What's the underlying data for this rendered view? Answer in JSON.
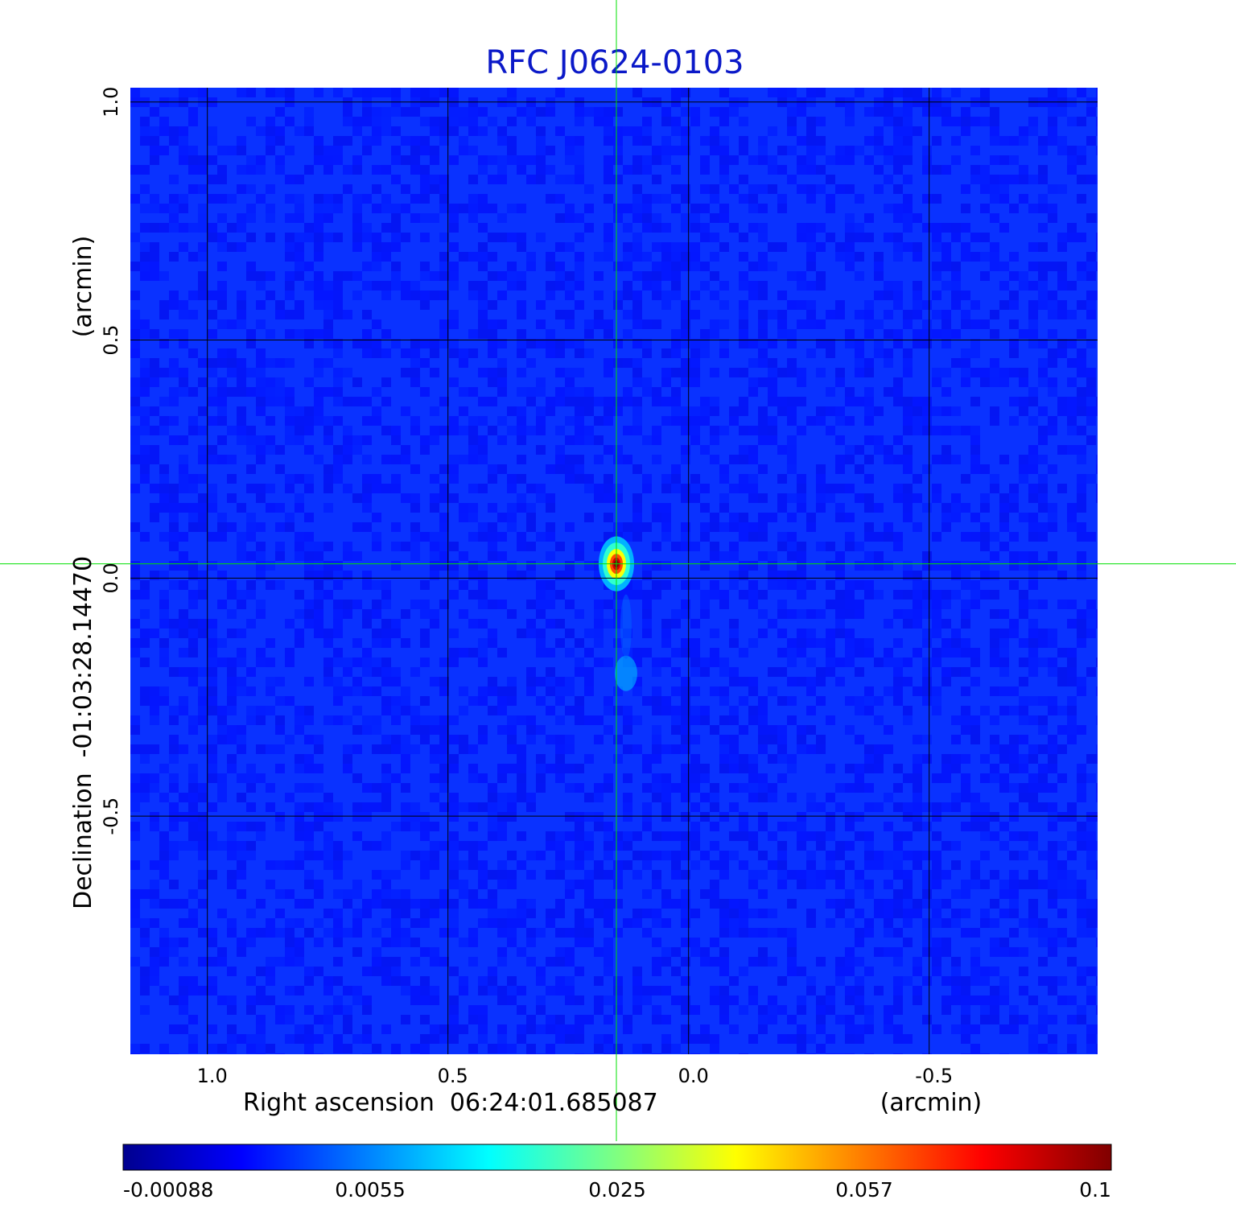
{
  "chart_data": {
    "type": "heatmap",
    "title": "RFC J0624-0103",
    "xlabel": "Right ascension  06:24:01.685087",
    "xunit": "(arcmin)",
    "ylabel": "Declination  -01:03:28.14470",
    "yunit": "(arcmin)",
    "xlim": [
      1.16,
      -0.85
    ],
    "ylim": [
      -1.0,
      1.03
    ],
    "x_ticks": [
      {
        "value": 1.0,
        "label": "1.0"
      },
      {
        "value": 0.5,
        "label": "0.5"
      },
      {
        "value": 0.0,
        "label": "0.0"
      },
      {
        "value": -0.5,
        "label": "-0.5"
      }
    ],
    "y_ticks": [
      {
        "value": 1.0,
        "label": "1.0"
      },
      {
        "value": 0.5,
        "label": "0.5"
      },
      {
        "value": 0.0,
        "label": "0.0"
      },
      {
        "value": -0.5,
        "label": "-0.5"
      }
    ],
    "grid": true,
    "crosshair": {
      "x": 0.15,
      "y": 0.03
    },
    "source_peak": {
      "x": 0.15,
      "y": 0.03,
      "value": 0.1
    },
    "secondary_feature": {
      "x": 0.13,
      "y": -0.2,
      "value": 0.012
    },
    "colorbar": {
      "colormap": "jet",
      "ticks": [
        {
          "value": -0.00088,
          "label": "-0.00088"
        },
        {
          "value": 0.0055,
          "label": "0.0055"
        },
        {
          "value": 0.025,
          "label": "0.025"
        },
        {
          "value": 0.057,
          "label": "0.057"
        },
        {
          "value": 0.1,
          "label": "0.1"
        }
      ]
    },
    "colors": {
      "title": "#0b19c8",
      "crosshair": "#00e000",
      "grid": "#000000"
    }
  }
}
